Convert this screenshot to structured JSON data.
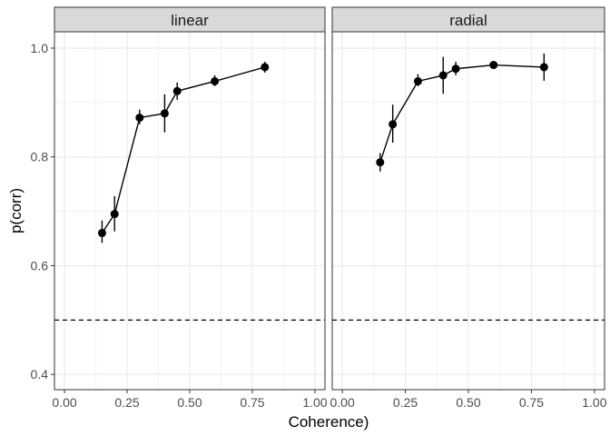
{
  "chart_data": {
    "type": "line",
    "facet_by": "panel",
    "panels": [
      {
        "name": "linear",
        "x": [
          0.15,
          0.2,
          0.3,
          0.4,
          0.45,
          0.6,
          0.8
        ],
        "y": [
          0.66,
          0.695,
          0.872,
          0.88,
          0.921,
          0.939,
          0.965
        ],
        "err_low": [
          0.642,
          0.663,
          0.86,
          0.845,
          0.905,
          0.93,
          0.955
        ],
        "err_high": [
          0.683,
          0.728,
          0.887,
          0.915,
          0.937,
          0.95,
          0.975
        ]
      },
      {
        "name": "radial",
        "x": [
          0.15,
          0.2,
          0.3,
          0.4,
          0.45,
          0.6,
          0.8
        ],
        "y": [
          0.79,
          0.86,
          0.939,
          0.95,
          0.962,
          0.969,
          0.965
        ],
        "err_low": [
          0.773,
          0.826,
          0.93,
          0.916,
          0.95,
          0.963,
          0.94
        ],
        "err_high": [
          0.807,
          0.896,
          0.952,
          0.984,
          0.975,
          0.975,
          0.99
        ]
      }
    ],
    "reference_line": {
      "y": 0.5,
      "style": "dashed"
    },
    "xlabel": "Coherence)",
    "ylabel": "p(corr)",
    "xlim": [
      -0.04,
      1.04
    ],
    "ylim": [
      0.372,
      1.03
    ],
    "x_ticks": [
      0.0,
      0.25,
      0.5,
      0.75,
      1.0
    ],
    "x_tick_labels": [
      "0.00",
      "0.25",
      "0.50",
      "0.75",
      "1.00"
    ],
    "y_ticks": [
      0.4,
      0.6,
      0.8,
      1.0
    ],
    "y_tick_labels": [
      "0.4",
      "0.6",
      "0.8",
      "1.0"
    ],
    "grid": true,
    "theme": "bw",
    "colors": {
      "line": "#000000",
      "point": "#000000",
      "grid": "#ebebeb",
      "strip_fill": "#d9d9d9",
      "border": "#333333",
      "tick_text": "#4d4d4d"
    }
  }
}
